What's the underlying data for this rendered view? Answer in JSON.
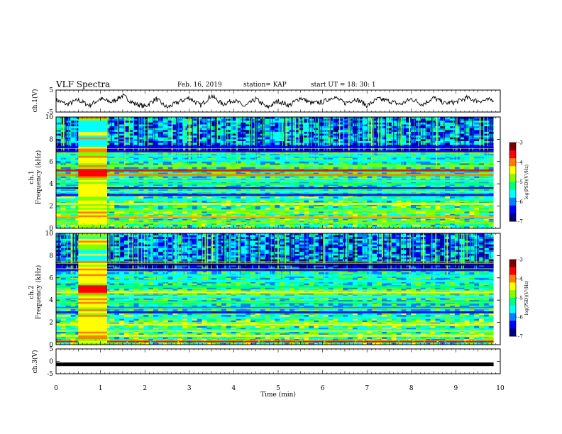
{
  "header": {
    "title": "VLF Spectra",
    "date": "Feb. 16, 2019",
    "station": "station= KAP",
    "start": "start  UT  =   18: 30: 1"
  },
  "colors": {
    "spectrogram_scale": [
      "#000080",
      "#0000ff",
      "#0080ff",
      "#00ffff",
      "#00ff80",
      "#80ff00",
      "#ffff00",
      "#ff8000",
      "#ff0000",
      "#800000"
    ],
    "trace": "#000000"
  },
  "chart_data": [
    {
      "type": "line",
      "name": "ch1-trace",
      "ylabel": "ch.1(V)",
      "ylim": [
        -5,
        5
      ],
      "yticks": [
        "5",
        "-5"
      ],
      "xlim": [
        0,
        10
      ],
      "x": [
        0.0,
        0.25,
        0.5,
        0.75,
        1.0,
        1.25,
        1.5,
        1.75,
        2.0,
        2.25,
        2.5,
        2.75,
        3.0,
        3.25,
        3.5,
        3.75,
        4.0,
        4.25,
        4.5,
        4.75,
        5.0,
        5.25,
        5.5,
        5.75,
        6.0,
        6.25,
        6.5,
        6.75,
        7.0,
        7.25,
        7.5,
        7.75,
        8.0,
        8.25,
        8.5,
        8.75,
        9.0,
        9.25,
        9.5,
        9.75
      ],
      "values": [
        0.5,
        -1.5,
        0.5,
        -2.0,
        1.0,
        -0.5,
        2.5,
        -1.0,
        -2.5,
        1.0,
        -3.0,
        -0.5,
        1.5,
        -2.0,
        2.5,
        -1.5,
        0.5,
        -2.5,
        1.0,
        -3.0,
        0.0,
        -2.0,
        1.5,
        -1.0,
        -0.5,
        2.0,
        -1.0,
        1.0,
        -2.0,
        1.0,
        0.0,
        -1.5,
        1.0,
        -1.5,
        1.5,
        -1.0,
        -0.5,
        1.5,
        0.0,
        0.5
      ]
    },
    {
      "type": "heatmap",
      "name": "ch2-spectrogram",
      "ylabel": "ch.1 Frequency (kHz)",
      "xlim": [
        0,
        10
      ],
      "ylim": [
        0,
        10
      ],
      "yticks": [
        "0",
        "2",
        "4",
        "6",
        "8",
        "10"
      ],
      "colorbar": {
        "label": "log(PSD)(V²/Hz)",
        "ticks": [
          "-3",
          "-4",
          "-5",
          "-6",
          "-7"
        ],
        "range": [
          -7,
          -3
        ]
      },
      "bright_interval_min": [
        0.5,
        1.15
      ],
      "band_levels_khz": [
        0.5,
        1.0,
        1.6,
        2.2,
        2.6,
        3.0,
        3.3,
        3.6,
        4.0,
        4.3,
        4.8,
        5.2,
        5.6,
        6.1,
        6.5,
        6.9,
        7.3
      ],
      "band_psd": [
        -4.8,
        -4.0,
        -5.0,
        -4.6,
        -5.4,
        -6.4,
        -5.6,
        -6.2,
        -5.2,
        -5.8,
        -4.2,
        -3.8,
        -5.0,
        -5.4,
        -5.8,
        -6.6,
        -6.2
      ]
    },
    {
      "type": "heatmap",
      "name": "ch3-spectrogram",
      "ylabel": "ch.2 Frequency (kHz)",
      "xlim": [
        0,
        10
      ],
      "ylim": [
        0,
        10
      ],
      "yticks": [
        "0",
        "2",
        "4",
        "6",
        "8",
        "10"
      ],
      "colorbar": {
        "label": "log(PSD)(V²/Hz)",
        "ticks": [
          "-3",
          "-4",
          "-5",
          "-6",
          "-7"
        ],
        "range": [
          -7,
          -3
        ]
      },
      "bright_interval_min": [
        0.5,
        1.15
      ],
      "band_levels_khz": [
        0.3,
        0.8,
        1.3,
        1.8,
        2.4,
        2.9,
        3.3,
        3.8,
        4.3,
        4.7,
        5.2,
        5.7,
        6.2,
        6.7,
        7.2
      ],
      "band_psd": [
        -3.8,
        -4.6,
        -5.6,
        -4.4,
        -5.8,
        -6.6,
        -6.0,
        -5.2,
        -5.6,
        -4.6,
        -5.2,
        -5.8,
        -5.4,
        -6.2,
        -6.8
      ]
    },
    {
      "type": "line",
      "name": "ch3-trace",
      "ylabel": "ch.3(V)",
      "ylim": [
        -5,
        5
      ],
      "yticks": [
        "5",
        "0",
        "-5"
      ],
      "xlim": [
        0,
        10
      ],
      "x": [
        0,
        10
      ],
      "values": [
        -1.2,
        -1.2
      ]
    }
  ],
  "xaxis": {
    "label": "Time  (min)",
    "ticks": [
      "0",
      "1",
      "2",
      "3",
      "4",
      "5",
      "6",
      "7",
      "8",
      "9",
      "10"
    ]
  }
}
